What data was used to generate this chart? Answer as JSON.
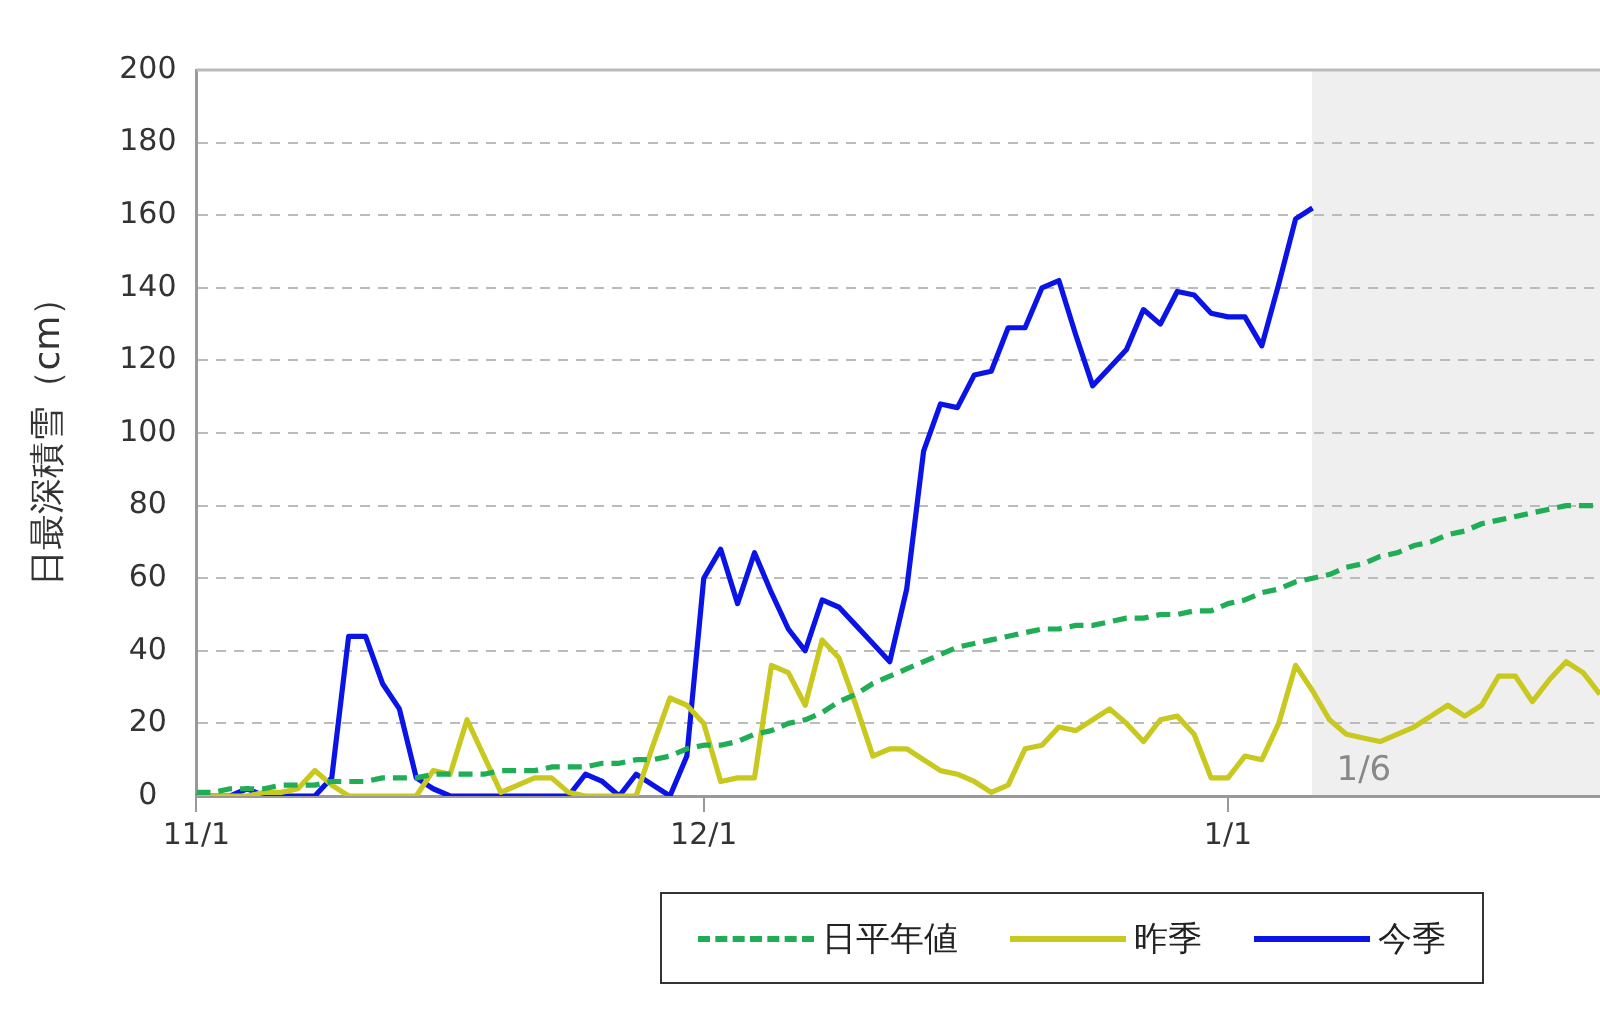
{
  "chart_data": {
    "type": "line",
    "ylabel": "日最深積雪（cm）",
    "categories": [
      "11/1",
      null,
      null,
      null,
      null,
      null,
      null,
      null,
      null,
      null,
      null,
      null,
      null,
      null,
      null,
      null,
      null,
      null,
      null,
      null,
      null,
      null,
      null,
      null,
      null,
      null,
      null,
      null,
      null,
      null,
      "12/1",
      null,
      null,
      null,
      null,
      null,
      null,
      null,
      null,
      null,
      null,
      null,
      null,
      null,
      null,
      null,
      null,
      null,
      null,
      null,
      null,
      null,
      null,
      null,
      null,
      null,
      null,
      null,
      null,
      null,
      null,
      "1/1",
      null,
      null,
      null,
      null,
      null,
      null,
      null,
      null,
      null,
      null,
      null,
      null,
      null,
      null,
      null,
      null,
      null,
      null,
      null,
      null,
      null,
      null
    ],
    "annotations": [
      "1/6"
    ],
    "ylim": [
      0,
      200
    ],
    "yticks": [
      0,
      20,
      40,
      60,
      80,
      100,
      120,
      140,
      160,
      180,
      200
    ],
    "grid": "y",
    "legend": "bottom",
    "marker": "none",
    "series": [
      {
        "name": "日平年値",
        "color": "#1fae55",
        "line_style": "dashed",
        "values": [
          1,
          1,
          2,
          2,
          2,
          3,
          3,
          3,
          4,
          4,
          4,
          5,
          5,
          5,
          6,
          6,
          6,
          6,
          7,
          7,
          7,
          8,
          8,
          8,
          9,
          9,
          10,
          10,
          11,
          13,
          14,
          14,
          15,
          17,
          18,
          20,
          21,
          23,
          26,
          28,
          31,
          33,
          35,
          37,
          39,
          41,
          42,
          43,
          44,
          45,
          46,
          46,
          47,
          47,
          48,
          49,
          49,
          50,
          50,
          51,
          51,
          53,
          54,
          56,
          57,
          59,
          60,
          61,
          63,
          64,
          66,
          67,
          69,
          70,
          72,
          73,
          75,
          76,
          77,
          78,
          79,
          80,
          80,
          80
        ]
      },
      {
        "name": "昨季",
        "color": "#c8c81e",
        "line_style": "solid",
        "values": [
          0,
          0,
          0,
          0,
          1,
          1,
          2,
          7,
          3,
          0,
          0,
          0,
          0,
          0,
          7,
          6,
          21,
          11,
          1,
          3,
          5,
          5,
          1,
          0,
          0,
          0,
          0,
          14,
          27,
          25,
          20,
          4,
          5,
          5,
          36,
          34,
          25,
          43,
          38,
          25,
          11,
          13,
          13,
          10,
          7,
          6,
          4,
          1,
          3,
          13,
          14,
          19,
          18,
          21,
          24,
          20,
          15,
          21,
          22,
          17,
          5,
          5,
          11,
          10,
          20,
          36,
          29,
          21,
          17,
          16,
          15,
          17,
          19,
          22,
          25,
          22,
          25,
          33,
          33,
          26,
          32,
          37,
          34,
          28
        ]
      },
      {
        "name": "今季",
        "color": "#0a14e6",
        "line_style": "solid",
        "values": [
          0,
          0,
          0,
          2,
          0,
          0,
          0,
          0,
          5,
          44,
          44,
          31,
          24,
          5,
          2,
          0,
          0,
          0,
          0,
          0,
          0,
          0,
          0,
          6,
          4,
          0,
          6,
          3,
          0,
          11,
          60,
          68,
          53,
          67,
          56,
          46,
          40,
          54,
          52,
          47,
          42,
          37,
          57,
          95,
          108,
          107,
          116,
          117,
          129,
          129,
          140,
          142,
          127,
          113,
          118,
          123,
          134,
          130,
          139,
          138,
          133,
          132,
          132,
          124,
          141,
          159,
          162,
          null,
          null,
          null,
          null,
          null,
          null,
          null,
          null,
          null,
          null,
          null,
          null,
          null,
          null,
          null,
          null,
          null
        ]
      }
    ]
  }
}
